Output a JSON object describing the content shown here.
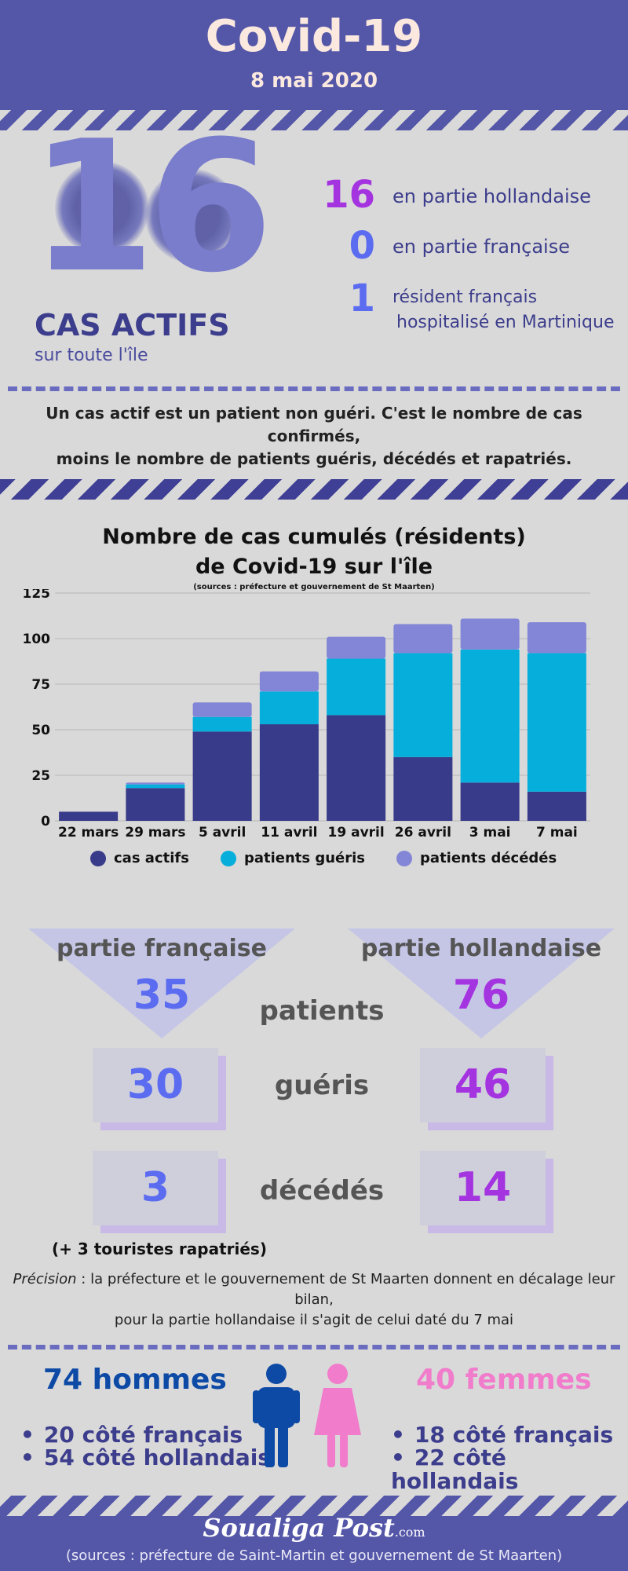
{
  "header": {
    "title": "Covid-19",
    "date": "8 mai 2020"
  },
  "hero": {
    "big_number": "16",
    "label": "CAS ACTIFS",
    "sublabel": "sur toute l'île",
    "stats": [
      {
        "value": "16",
        "text": "en partie hollandaise",
        "color": "#a433e0"
      },
      {
        "value": "0",
        "text": "en partie française",
        "color": "#5b6cf0"
      },
      {
        "value": "1",
        "text_line1": "résident français",
        "text_line2": "hospitalisé en Martinique",
        "color": "#5b6cf0"
      }
    ]
  },
  "definition": {
    "line1": "Un cas actif est un patient non guéri. C'est le nombre de cas confirmés,",
    "line2": "moins le nombre de patients guéris, décédés et rapatriés."
  },
  "chart_data": {
    "type": "bar",
    "stacked": true,
    "title_line1": "Nombre de  cas cumulés (résidents)",
    "title_line2": "de Covid-19 sur l'île",
    "source": "(sources : préfecture et gouvernement de St Maarten)",
    "categories": [
      "22 mars",
      "29 mars",
      "5 avril",
      "11 avril",
      "19 avril",
      "26 avril",
      "3 mai",
      "7 mai"
    ],
    "series": [
      {
        "name": "cas actifs",
        "color": "#383a8a",
        "values": [
          5,
          18,
          49,
          53,
          58,
          35,
          21,
          16
        ]
      },
      {
        "name": "patients guéris",
        "color": "#06aedb",
        "values": [
          0,
          2,
          8,
          18,
          31,
          57,
          73,
          76
        ]
      },
      {
        "name": "patients décédés",
        "color": "#8385d6",
        "values": [
          0,
          1,
          8,
          11,
          12,
          16,
          17,
          17
        ]
      }
    ],
    "ylim": [
      0,
      125
    ],
    "yticks": [
      "0",
      "25",
      "50",
      "75",
      "100",
      "125"
    ],
    "grid": true,
    "legend_position": "bottom"
  },
  "comparison": {
    "fr_label": "partie française",
    "nl_label": "partie hollandaise",
    "rows": [
      {
        "label": "patients",
        "fr": "35",
        "nl": "76"
      },
      {
        "label": "guéris",
        "fr": "30",
        "nl": "46"
      },
      {
        "label": "décédés",
        "fr": "3",
        "nl": "14"
      }
    ],
    "fr_color": "#5b6cf0",
    "nl_color": "#a433e0",
    "tourists_note": "(+ 3 touristes rapatriés)"
  },
  "precision": {
    "label": "Précision",
    "line1": " : la préfecture et le gouvernement de St Maarten donnent en décalage leur bilan,",
    "line2": "pour la partie hollandaise il s'agit de celui daté du 7 mai"
  },
  "gender": {
    "men_title": "74 hommes",
    "men_items": [
      "20 côté français",
      "54 côté hollandais"
    ],
    "women_title": "40 femmes",
    "women_items": [
      "18 côté français",
      "22 côté hollandais"
    ],
    "men_color": "#0d4aa6",
    "women_color": "#f07ccb"
  },
  "footer": {
    "logo": "Soualiga Post",
    "logo_suffix": ".com",
    "sources": "(sources : préfecture de Saint-Martin et gouvernement de St Maarten)"
  }
}
